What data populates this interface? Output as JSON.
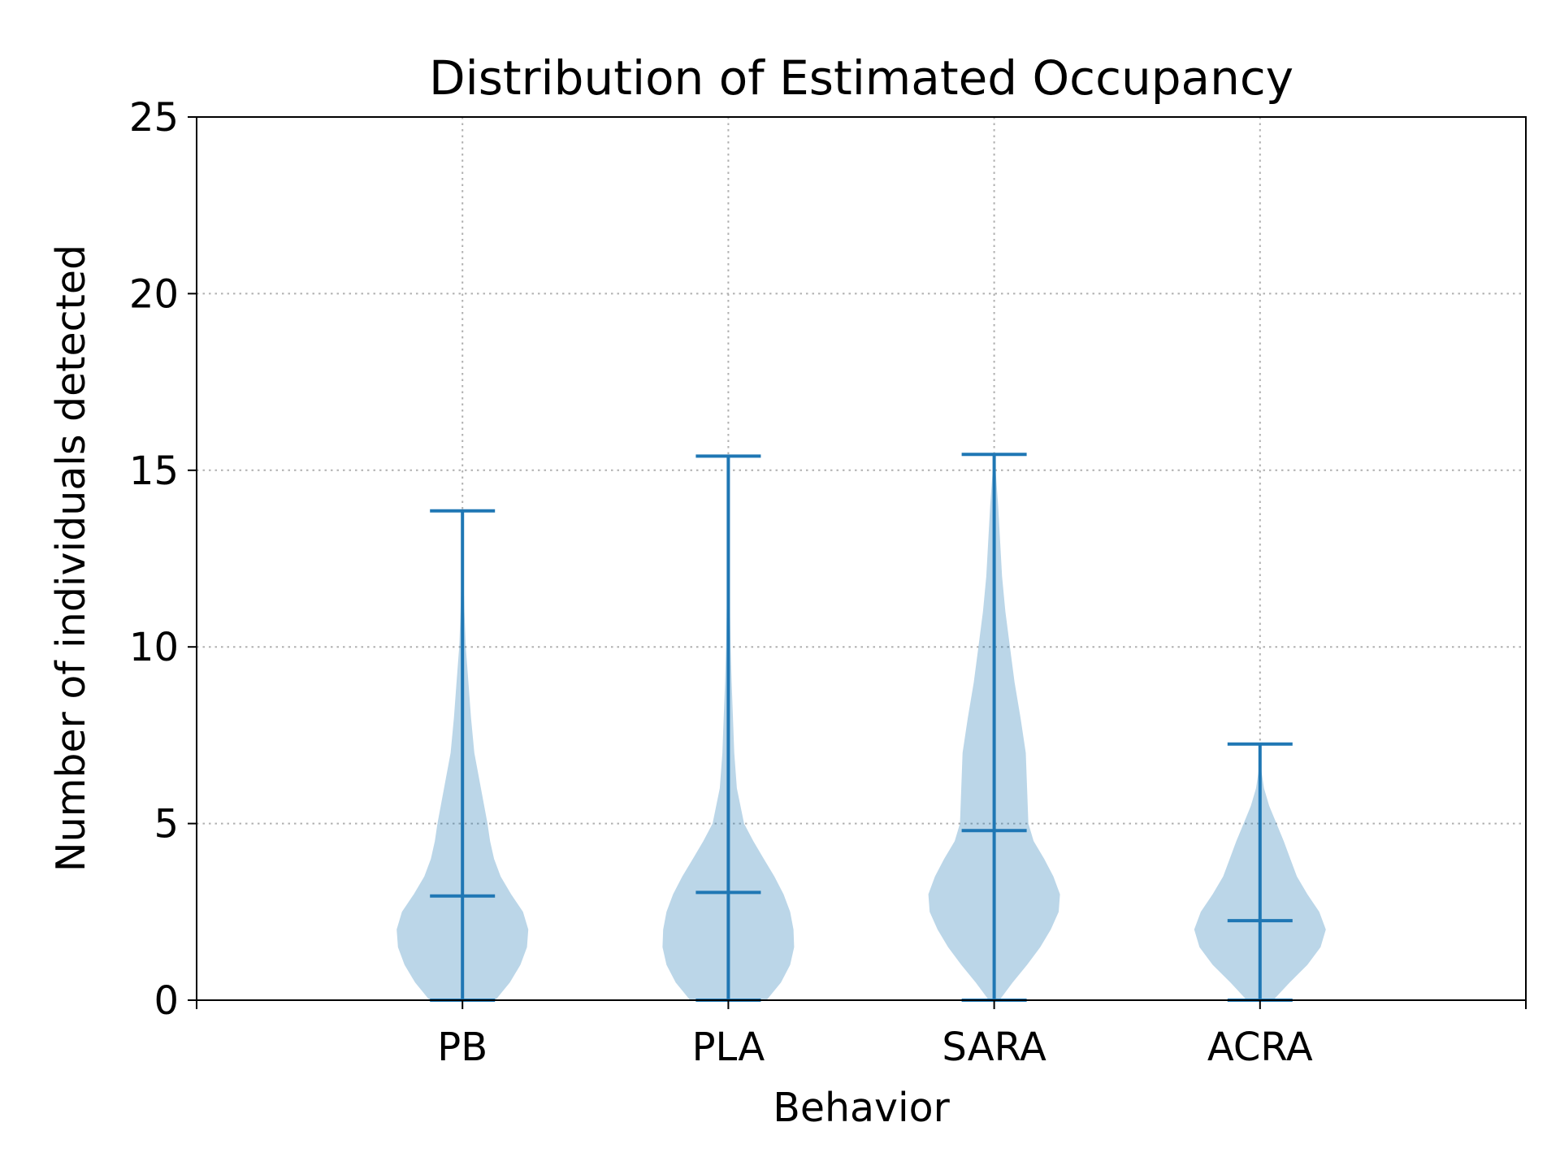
{
  "chart_data": {
    "type": "violin",
    "title": "Distribution of Estimated Occupancy",
    "xlabel": "Behavior",
    "ylabel": "Number of individuals detected",
    "ylim": [
      0,
      25
    ],
    "yticks": [
      0,
      5,
      10,
      15,
      20,
      25
    ],
    "grid": true,
    "legend": "none",
    "categories": [
      "PB",
      "PLA",
      "SARA",
      "ACRA"
    ],
    "colors": {
      "body": "#1f77b4",
      "body_opacity": 0.3,
      "lines": "#1f77b4",
      "grid": "#b0b0b0",
      "axes": "#000000"
    },
    "violins": [
      {
        "name": "PB",
        "min": 0,
        "max": 13.85,
        "median": 2.95,
        "density": [
          [
            0,
            0.5
          ],
          [
            0.5,
            0.72
          ],
          [
            1,
            0.88
          ],
          [
            1.5,
            0.98
          ],
          [
            2,
            1.0
          ],
          [
            2.5,
            0.92
          ],
          [
            3,
            0.74
          ],
          [
            3.5,
            0.58
          ],
          [
            4,
            0.48
          ],
          [
            4.5,
            0.42
          ],
          [
            5,
            0.38
          ],
          [
            6,
            0.28
          ],
          [
            7,
            0.18
          ],
          [
            8,
            0.13
          ],
          [
            9,
            0.09
          ],
          [
            10,
            0.05
          ],
          [
            11,
            0.03
          ],
          [
            12,
            0.015
          ],
          [
            13,
            0.005
          ],
          [
            13.85,
            0
          ]
        ]
      },
      {
        "name": "PLA",
        "min": 0,
        "max": 15.4,
        "median": 3.05,
        "density": [
          [
            0,
            0.58
          ],
          [
            0.5,
            0.8
          ],
          [
            1,
            0.94
          ],
          [
            1.5,
            1.0
          ],
          [
            2,
            0.99
          ],
          [
            2.5,
            0.94
          ],
          [
            3,
            0.84
          ],
          [
            3.5,
            0.7
          ],
          [
            4,
            0.54
          ],
          [
            4.5,
            0.38
          ],
          [
            5,
            0.24
          ],
          [
            6,
            0.13
          ],
          [
            7,
            0.09
          ],
          [
            8,
            0.07
          ],
          [
            9,
            0.05
          ],
          [
            10,
            0.035
          ],
          [
            11,
            0.025
          ],
          [
            12,
            0.017
          ],
          [
            13,
            0.01
          ],
          [
            14,
            0.005
          ],
          [
            15.4,
            0
          ]
        ]
      },
      {
        "name": "SARA",
        "min": 0,
        "max": 15.45,
        "median": 4.8,
        "density": [
          [
            0,
            0.08
          ],
          [
            0.5,
            0.28
          ],
          [
            1,
            0.5
          ],
          [
            1.5,
            0.7
          ],
          [
            2,
            0.86
          ],
          [
            2.5,
            0.98
          ],
          [
            3,
            1.0
          ],
          [
            3.5,
            0.9
          ],
          [
            4,
            0.76
          ],
          [
            4.5,
            0.6
          ],
          [
            5,
            0.52
          ],
          [
            6,
            0.5
          ],
          [
            7,
            0.48
          ],
          [
            8,
            0.4
          ],
          [
            9,
            0.31
          ],
          [
            10,
            0.24
          ],
          [
            11,
            0.17
          ],
          [
            12,
            0.12
          ],
          [
            13,
            0.09
          ],
          [
            14,
            0.06
          ],
          [
            14.8,
            0.03
          ],
          [
            15.45,
            0
          ]
        ]
      },
      {
        "name": "ACRA",
        "min": 0,
        "max": 7.25,
        "median": 2.25,
        "density": [
          [
            0,
            0.2
          ],
          [
            0.5,
            0.45
          ],
          [
            1,
            0.72
          ],
          [
            1.5,
            0.92
          ],
          [
            2,
            1.0
          ],
          [
            2.5,
            0.9
          ],
          [
            3,
            0.72
          ],
          [
            3.5,
            0.56
          ],
          [
            4,
            0.46
          ],
          [
            4.5,
            0.36
          ],
          [
            5,
            0.25
          ],
          [
            5.5,
            0.14
          ],
          [
            6,
            0.06
          ],
          [
            6.5,
            0.02
          ],
          [
            7.25,
            0
          ]
        ]
      }
    ]
  }
}
